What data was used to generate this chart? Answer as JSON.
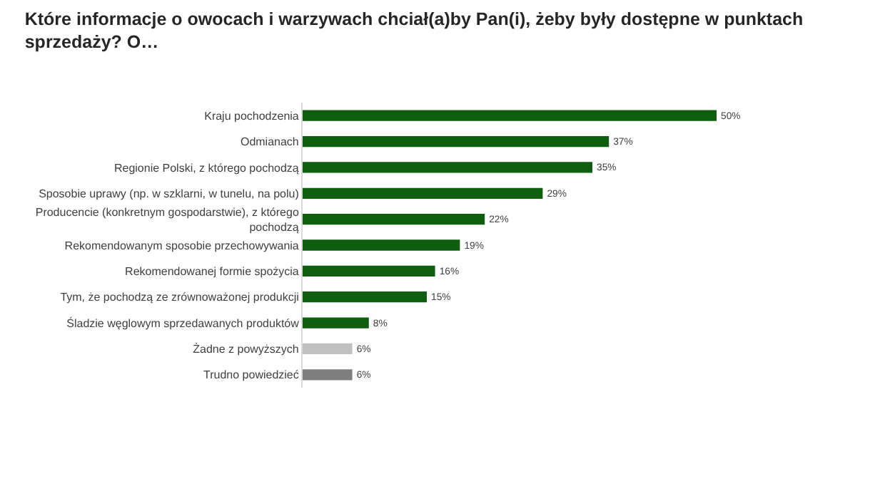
{
  "chart_data": {
    "type": "bar",
    "orientation": "horizontal",
    "title": "Które informacje o owocach i warzywach chciał(a)by Pan(i), żeby były dostępne w punktach\nsprzedaży? O…",
    "categories": [
      "Kraju pochodzenia",
      "Odmianach",
      "Regionie Polski, z którego pochodzą",
      "Sposobie uprawy (np. w szklarni, w tunelu, na polu)",
      "Producencie (konkretnym gospodarstwie), z którego\npochodzą",
      "Rekomendowanym sposobie przechowywania",
      "Rekomendowanej formie spożycia",
      "Tym, że pochodzą ze zrównoważonej produkcji",
      "Śladzie węglowym sprzedawanych produktów",
      "Żadne z powyższych",
      "Trudno powiedzieć"
    ],
    "values": [
      50,
      37,
      35,
      29,
      22,
      19,
      16,
      15,
      8,
      6,
      6
    ],
    "value_labels": [
      "50%",
      "37%",
      "35%",
      "29%",
      "22%",
      "19%",
      "16%",
      "15%",
      "8%",
      "6%",
      "6%"
    ],
    "colors": [
      "#0f5e0f",
      "#0f5e0f",
      "#0f5e0f",
      "#0f5e0f",
      "#0f5e0f",
      "#0f5e0f",
      "#0f5e0f",
      "#0f5e0f",
      "#0f5e0f",
      "#c0c0c0",
      "#7f7f7f"
    ],
    "data_labels": false
  }
}
